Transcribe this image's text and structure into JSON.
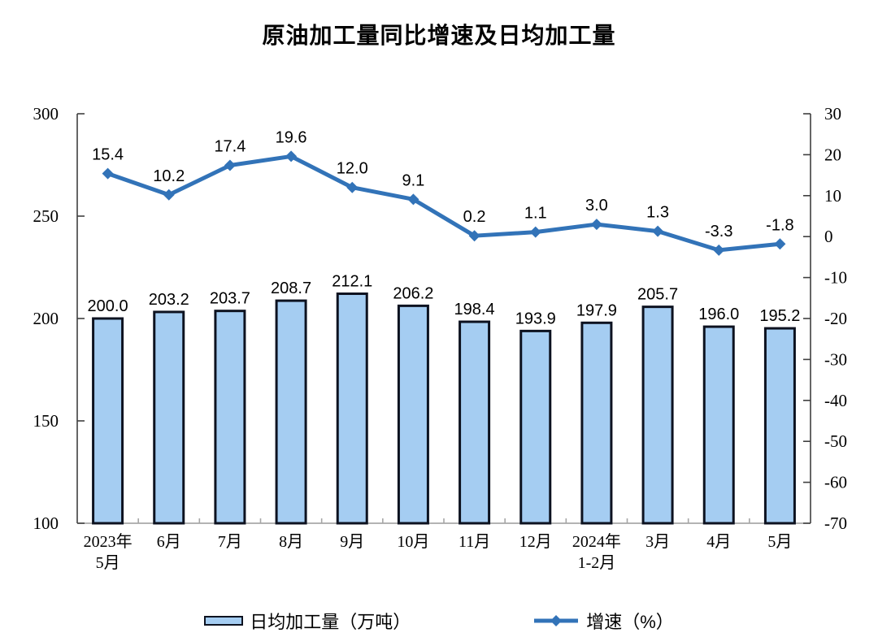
{
  "title": "原油加工量同比增速及日均加工量",
  "colors": {
    "background": "#FFFFFF",
    "bar_fill": "#A5CDF2",
    "bar_border": "#0D1220",
    "line": "#3273B8",
    "axis_side": "#3F3F3F",
    "axis_bottom": "#9A9A9A",
    "tick_minor": "#A6A6A6",
    "label_text": "#000000"
  },
  "legend": {
    "items": [
      {
        "label": "日均加工量（万吨）",
        "series_type": "bar"
      },
      {
        "label": "增速（%）",
        "series_type": "line"
      }
    ]
  },
  "chart_data": {
    "type": "bar",
    "title": "原油加工量同比增速及日均加工量",
    "categories": [
      "2023年\n5月",
      "6月",
      "7月",
      "8月",
      "9月",
      "10月",
      "11月",
      "12月",
      "2024年\n1-2月",
      "3月",
      "4月",
      "5月"
    ],
    "series": [
      {
        "name": "日均加工量（万吨）",
        "type": "bar",
        "axis": "left",
        "values": [
          200.0,
          203.2,
          203.7,
          208.7,
          212.1,
          206.2,
          198.4,
          193.9,
          197.9,
          205.7,
          196.0,
          195.2
        ]
      },
      {
        "name": "增速（%）",
        "type": "line",
        "axis": "right",
        "values": [
          15.4,
          10.2,
          17.4,
          19.6,
          12.0,
          9.1,
          0.2,
          1.1,
          3.0,
          1.3,
          -3.3,
          -1.8
        ]
      }
    ],
    "left_axis": {
      "min": 100,
      "max": 300,
      "ticks": [
        300,
        250,
        200,
        150,
        100
      ]
    },
    "right_axis": {
      "min": -70,
      "max": 30,
      "ticks": [
        30,
        20,
        10,
        0,
        -10,
        -20,
        -30,
        -40,
        -50,
        -60,
        -70
      ]
    },
    "grid": false,
    "legend_position": "bottom",
    "value_label_decimals": 1
  }
}
